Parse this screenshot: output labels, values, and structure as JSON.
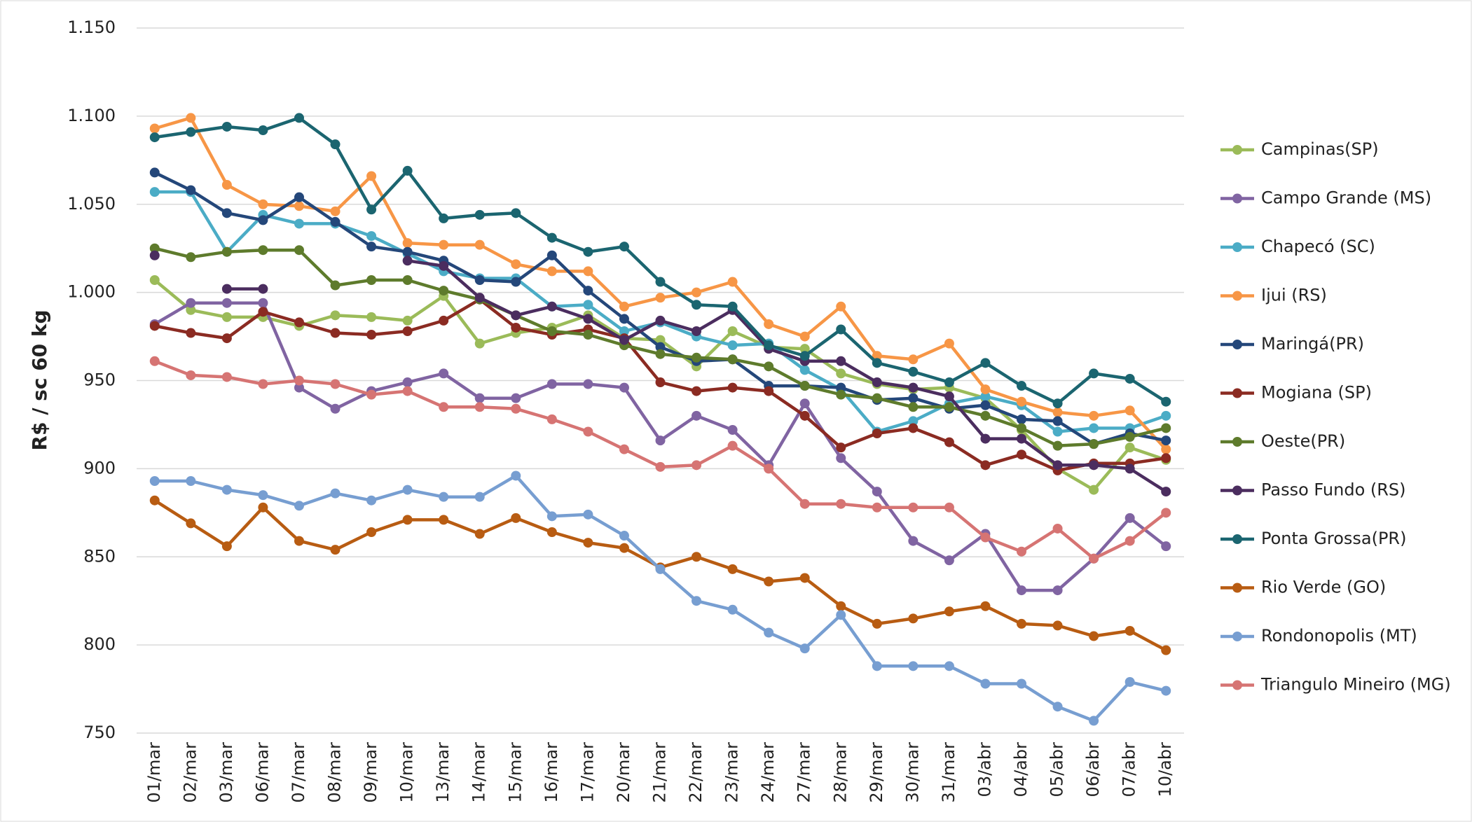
{
  "chart_data": {
    "type": "line",
    "y_label": "R$ / sc 60 kg",
    "categories": [
      "01/mar",
      "02/mar",
      "03/mar",
      "06/mar",
      "07/mar",
      "08/mar",
      "09/mar",
      "10/mar",
      "13/mar",
      "14/mar",
      "15/mar",
      "16/mar",
      "17/mar",
      "20/mar",
      "21/mar",
      "22/mar",
      "23/mar",
      "24/mar",
      "27/mar",
      "28/mar",
      "29/mar",
      "30/mar",
      "31/mar",
      "03/abr",
      "04/abr",
      "05/abr",
      "06/abr",
      "07/abr",
      "10/abr"
    ],
    "ylim": [
      750,
      1150
    ],
    "yticks": [
      750,
      800,
      850,
      900,
      950,
      {
        "value": 1000,
        "label": "1.000"
      },
      {
        "value": 1050,
        "label": "1.050"
      },
      {
        "value": 1100,
        "label": "1.100"
      },
      {
        "value": 1150,
        "label": "1.150"
      }
    ],
    "grid": true,
    "legend": "right",
    "series": [
      {
        "name": "Campinas(SP)",
        "color": "#9bbb59",
        "values": [
          1007,
          990,
          986,
          986,
          981,
          987,
          986,
          984,
          998,
          971,
          977,
          980,
          987,
          974,
          973,
          958,
          978,
          969,
          968,
          954,
          948,
          945,
          946,
          940,
          922,
          900,
          888,
          912,
          905
        ]
      },
      {
        "name": "Campo Grande (MS)",
        "color": "#8064a2",
        "values": [
          982,
          994,
          994,
          994,
          946,
          934,
          944,
          949,
          954,
          940,
          940,
          948,
          948,
          946,
          916,
          930,
          922,
          902,
          937,
          906,
          887,
          859,
          848,
          863,
          831,
          831,
          849,
          872,
          856
        ]
      },
      {
        "name": "Chapecó (SC)",
        "color": "#4bacc6",
        "values": [
          1057,
          1057,
          1023,
          1044,
          1039,
          1039,
          1032,
          1022,
          1012,
          1008,
          1008,
          992,
          993,
          978,
          983,
          975,
          970,
          971,
          956,
          945,
          921,
          927,
          937,
          941,
          936,
          921,
          923,
          923,
          930
        ]
      },
      {
        "name": "Ijui (RS)",
        "color": "#f79646",
        "values": [
          1093,
          1099,
          1061,
          1050,
          1049,
          1046,
          1066,
          1028,
          1027,
          1027,
          1016,
          1012,
          1012,
          992,
          997,
          1000,
          1006,
          982,
          975,
          992,
          964,
          962,
          971,
          945,
          938,
          932,
          930,
          933,
          911
        ]
      },
      {
        "name": "Maringá(PR)",
        "color": "#24477a",
        "values": [
          1068,
          1058,
          1045,
          1041,
          1054,
          1040,
          1026,
          1023,
          1018,
          1007,
          1006,
          1021,
          1001,
          985,
          969,
          961,
          962,
          947,
          947,
          946,
          939,
          940,
          934,
          936,
          928,
          927,
          914,
          920,
          916
        ]
      },
      {
        "name": "Mogiana (SP)",
        "color": "#8b2b22",
        "values": [
          981,
          977,
          974,
          989,
          983,
          977,
          976,
          978,
          984,
          996,
          980,
          976,
          979,
          974,
          949,
          944,
          946,
          944,
          930,
          912,
          920,
          923,
          915,
          902,
          908,
          899,
          903,
          903,
          906
        ]
      },
      {
        "name": "Oeste(PR)",
        "color": "#5e7b2c",
        "values": [
          1025,
          1020,
          1023,
          1024,
          1024,
          1004,
          1007,
          1007,
          1001,
          996,
          987,
          978,
          976,
          970,
          965,
          963,
          962,
          958,
          947,
          942,
          940,
          935,
          935,
          930,
          923,
          913,
          914,
          918,
          923
        ]
      },
      {
        "name": "Passo Fundo (RS)",
        "color": "#4b2d5f",
        "values": [
          1021,
          null,
          1002,
          1002,
          null,
          null,
          null,
          1018,
          1015,
          997,
          987,
          992,
          985,
          973,
          984,
          978,
          990,
          968,
          961,
          961,
          949,
          946,
          941,
          917,
          917,
          902,
          902,
          900,
          887
        ]
      },
      {
        "name": "Ponta Grossa(PR)",
        "color": "#1b6570",
        "values": [
          1088,
          1091,
          1094,
          1092,
          1099,
          1084,
          1047,
          1069,
          1042,
          1044,
          1045,
          1031,
          1023,
          1026,
          1006,
          993,
          992,
          970,
          964,
          979,
          960,
          955,
          949,
          960,
          947,
          937,
          954,
          951,
          938
        ]
      },
      {
        "name": "Rio Verde (GO)",
        "color": "#b85c12",
        "values": [
          882,
          869,
          856,
          878,
          859,
          854,
          864,
          871,
          871,
          863,
          872,
          864,
          858,
          855,
          844,
          850,
          843,
          836,
          838,
          822,
          812,
          815,
          819,
          822,
          812,
          811,
          805,
          808,
          797
        ]
      },
      {
        "name": "Rondonopolis (MT)",
        "color": "#779ed1",
        "values": [
          893,
          893,
          888,
          885,
          879,
          886,
          882,
          888,
          884,
          884,
          896,
          873,
          874,
          862,
          843,
          825,
          820,
          807,
          798,
          817,
          788,
          788,
          788,
          778,
          778,
          765,
          757,
          779,
          774
        ]
      },
      {
        "name": "Triangulo Mineiro (MG)",
        "color": "#d67473",
        "values": [
          961,
          953,
          952,
          948,
          950,
          948,
          942,
          944,
          935,
          935,
          934,
          928,
          921,
          911,
          901,
          902,
          913,
          900,
          880,
          880,
          878,
          878,
          878,
          861,
          853,
          866,
          849,
          859,
          875
        ]
      }
    ]
  }
}
